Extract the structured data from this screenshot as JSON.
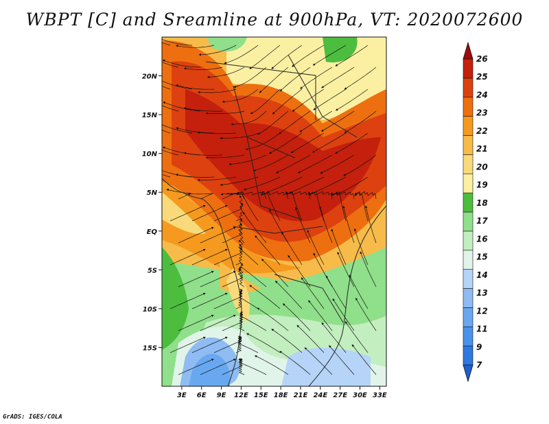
{
  "title": "WBPT [C] and Sreamline at 900hPa, VT: 2020072600",
  "credit": "GrADS: IGES/COLA",
  "map": {
    "lon_labels": [
      "3E",
      "6E",
      "9E",
      "12E",
      "15E",
      "18E",
      "21E",
      "24E",
      "27E",
      "30E",
      "33E"
    ],
    "lat_labels": [
      "20N",
      "15N",
      "10N",
      "5N",
      "EQ",
      "5S",
      "10S",
      "15S"
    ],
    "lon_range": [
      0,
      34
    ],
    "lat_range": [
      -20,
      25
    ]
  },
  "colorbar": {
    "labels": [
      "7",
      "9",
      "11",
      "12",
      "13",
      "14",
      "15",
      "16",
      "17",
      "18",
      "19",
      "20",
      "21",
      "22",
      "23",
      "24",
      "25",
      "26"
    ],
    "colors": [
      "#1f5fd0",
      "#2e79e0",
      "#4a92ea",
      "#68a8f0",
      "#8ebcf3",
      "#b5d4f7",
      "#e0f4ea",
      "#c3eec0",
      "#90df8a",
      "#4cbd3f",
      "#fbf0a2",
      "#f9da7a",
      "#f7bb4a",
      "#f59a1e",
      "#ee6f0f",
      "#dd4110",
      "#c4200d",
      "#a3090b"
    ]
  },
  "colors": {
    "accent_hot": "#c4200d",
    "accent_cool": "#4a92ea"
  }
}
